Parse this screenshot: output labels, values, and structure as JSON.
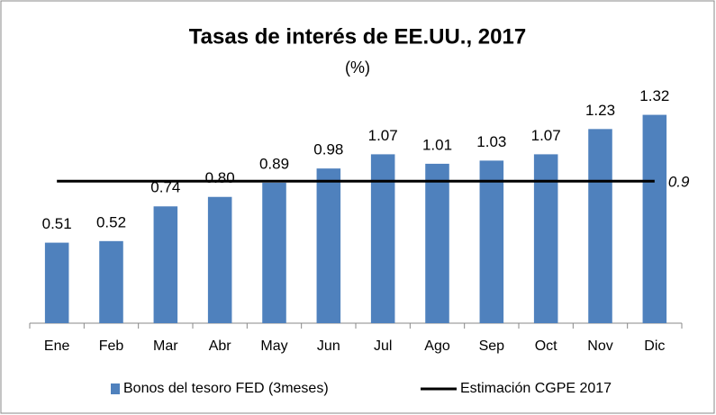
{
  "chart_data": {
    "type": "bar",
    "title": "Tasas de interés de EE.UU., 2017",
    "subtitle": "(%)",
    "categories": [
      "Ene",
      "Feb",
      "Mar",
      "Abr",
      "May",
      "Jun",
      "Jul",
      "Ago",
      "Sep",
      "Oct",
      "Nov",
      "Dic"
    ],
    "series": [
      {
        "name": "Bonos del tesoro FED (3meses)",
        "color": "#4f81bd",
        "values": [
          0.51,
          0.52,
          0.74,
          0.8,
          0.89,
          0.98,
          1.07,
          1.01,
          1.03,
          1.07,
          1.23,
          1.32
        ],
        "value_labels": [
          "0.51",
          "0.52",
          "0.74",
          "0.80",
          "0.89",
          "0.98",
          "1.07",
          "1.01",
          "1.03",
          "1.07",
          "1.23",
          "1.32"
        ]
      }
    ],
    "reference_line": {
      "name": "Estimación CGPE 2017",
      "value": 0.9,
      "color": "#000000"
    },
    "ylim": [
      0,
      1.5
    ],
    "legend": "bottom"
  }
}
